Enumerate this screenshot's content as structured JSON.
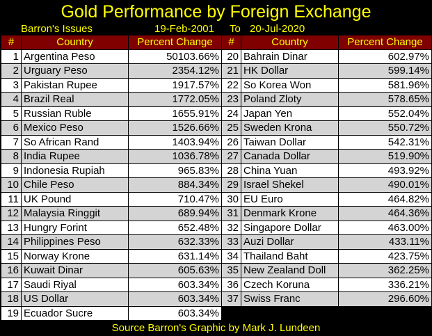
{
  "title": "Gold Performance by Foreign Exchange",
  "subtitle": {
    "source": "Barron's Issues",
    "start": "19-Feb-2001",
    "to": "To",
    "end": "20-Jul-2020"
  },
  "headers": {
    "rank": "#",
    "country": "Country",
    "change": "Percent Change"
  },
  "footer": "Source Barron's   Graphic by Mark J. Lundeen",
  "colors": {
    "background": "#000000",
    "title": "#ffff00",
    "header_bg": "#800000",
    "row_light": "#ffffff",
    "row_dark": "#d4d4d4"
  },
  "chart_data": {
    "type": "table",
    "columns": [
      "#",
      "Country",
      "Percent Change"
    ],
    "rows": [
      [
        "1",
        "Argentina Peso",
        "50103.66%"
      ],
      [
        "2",
        "Urguary Peso",
        "2354.12%"
      ],
      [
        "3",
        "Pakistan Rupee",
        "1917.57%"
      ],
      [
        "4",
        "Brazil Real",
        "1772.05%"
      ],
      [
        "5",
        "Russian Ruble",
        "1655.91%"
      ],
      [
        "6",
        "Mexico Peso",
        "1526.66%"
      ],
      [
        "7",
        "So African Rand",
        "1403.94%"
      ],
      [
        "8",
        "India Rupee",
        "1036.78%"
      ],
      [
        "9",
        "Indonesia Rupiah",
        "965.83%"
      ],
      [
        "10",
        "Chile Peso",
        "884.34%"
      ],
      [
        "11",
        "UK Pound",
        "710.47%"
      ],
      [
        "12",
        "Malaysia Ringgit",
        "689.94%"
      ],
      [
        "13",
        "Hungry Forint",
        "652.48%"
      ],
      [
        "14",
        "Philippines Peso",
        "632.33%"
      ],
      [
        "15",
        "Norway Krone",
        "631.14%"
      ],
      [
        "16",
        "Kuwait Dinar",
        "605.63%"
      ],
      [
        "17",
        "Saudi Riyal",
        "603.34%"
      ],
      [
        "18",
        "US Dollar",
        "603.34%"
      ],
      [
        "19",
        "Ecuador Sucre",
        "603.34%"
      ],
      [
        "20",
        "Bahrain Dinar",
        "602.97%"
      ],
      [
        "21",
        "HK Dollar",
        "599.14%"
      ],
      [
        "22",
        "So Korea Won",
        "581.96%"
      ],
      [
        "23",
        "Poland Zloty",
        "578.65%"
      ],
      [
        "24",
        "Japan Yen",
        "552.04%"
      ],
      [
        "25",
        "Sweden Krona",
        "550.72%"
      ],
      [
        "26",
        "Taiwan Dollar",
        "542.31%"
      ],
      [
        "27",
        "Canada Dollar",
        "519.90%"
      ],
      [
        "28",
        "China Yuan",
        "493.92%"
      ],
      [
        "29",
        "Israel Shekel",
        "490.01%"
      ],
      [
        "30",
        "EU Euro",
        "464.82%"
      ],
      [
        "31",
        "Denmark Krone",
        "464.36%"
      ],
      [
        "32",
        "Singapore Dollar",
        "463.00%"
      ],
      [
        "33",
        "Auzi Dollar",
        "433.11%"
      ],
      [
        "34",
        "Thailand Baht",
        "423.75%"
      ],
      [
        "35",
        "New Zealand Doll",
        "362.25%"
      ],
      [
        "36",
        "Czech Koruna",
        "336.21%"
      ],
      [
        "37",
        "Swiss Franc",
        "296.60%"
      ]
    ]
  }
}
